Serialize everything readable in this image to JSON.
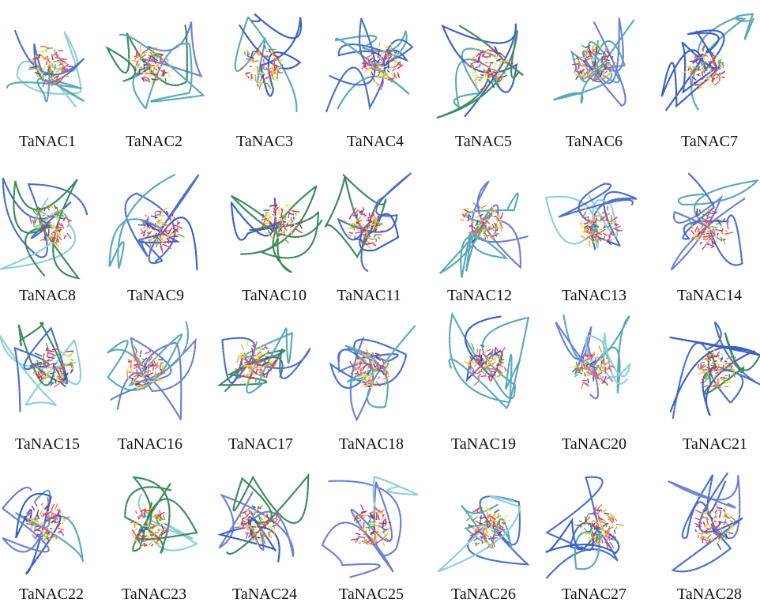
{
  "labels": [
    "TaNAC1",
    "TaNAC2",
    "TaNAC3",
    "TaNAC4",
    "TaNAC5",
    "TaNAC6",
    "TaNAC7",
    "TaNAC8",
    "TaNAC9",
    "TaNAC10",
    "TaNAC11",
    "TaNAC12",
    "TaNAC13",
    "TaNAC14",
    "TaNAC15",
    "TaNAC16",
    "TaNAC17",
    "TaNAC18",
    "TaNAC19",
    "TaNAC20",
    "TaNAC21",
    "TaNAC22",
    "TaNAC23",
    "TaNAC24",
    "TaNAC25",
    "TaNAC26",
    "TaNAC27",
    "TaNAC28"
  ]
}
